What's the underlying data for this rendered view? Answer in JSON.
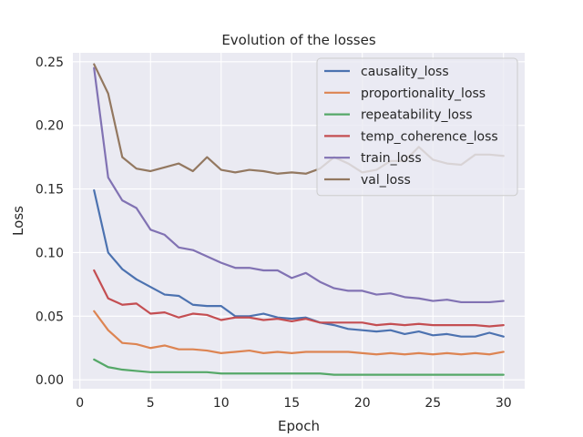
{
  "chart_data": {
    "type": "line",
    "title": "Evolution of the losses",
    "xlabel": "Epoch",
    "ylabel": "Loss",
    "xlim": [
      -0.5,
      31.5
    ],
    "ylim": [
      -0.007,
      0.257
    ],
    "xticks": [
      0,
      5,
      10,
      15,
      20,
      25,
      30
    ],
    "yticks": [
      0.0,
      0.05,
      0.1,
      0.15,
      0.2,
      0.25
    ],
    "xtick_labels": [
      "0",
      "5",
      "10",
      "15",
      "20",
      "25",
      "30"
    ],
    "ytick_labels": [
      "0.00",
      "0.05",
      "0.10",
      "0.15",
      "0.20",
      "0.25"
    ],
    "grid": true,
    "background": "#eaeaf2",
    "legend_position": "upper right",
    "x": [
      1,
      2,
      3,
      4,
      5,
      6,
      7,
      8,
      9,
      10,
      11,
      12,
      13,
      14,
      15,
      16,
      17,
      18,
      19,
      20,
      21,
      22,
      23,
      24,
      25,
      26,
      27,
      28,
      29,
      30
    ],
    "series": [
      {
        "name": "causality_loss",
        "color": "#4c72b0",
        "values": [
          0.149,
          0.1,
          0.087,
          0.079,
          0.073,
          0.067,
          0.066,
          0.059,
          0.058,
          0.058,
          0.05,
          0.05,
          0.052,
          0.049,
          0.048,
          0.049,
          0.045,
          0.043,
          0.04,
          0.039,
          0.038,
          0.039,
          0.036,
          0.038,
          0.035,
          0.036,
          0.034,
          0.034,
          0.037,
          0.034
        ]
      },
      {
        "name": "proportionality_loss",
        "color": "#dd8452",
        "values": [
          0.054,
          0.039,
          0.029,
          0.028,
          0.025,
          0.027,
          0.024,
          0.024,
          0.023,
          0.021,
          0.022,
          0.023,
          0.021,
          0.022,
          0.021,
          0.022,
          0.022,
          0.022,
          0.022,
          0.021,
          0.02,
          0.021,
          0.02,
          0.021,
          0.02,
          0.021,
          0.02,
          0.021,
          0.02,
          0.022
        ]
      },
      {
        "name": "repeatability_loss",
        "color": "#55a868",
        "values": [
          0.016,
          0.01,
          0.008,
          0.007,
          0.006,
          0.006,
          0.006,
          0.006,
          0.006,
          0.005,
          0.005,
          0.005,
          0.005,
          0.005,
          0.005,
          0.005,
          0.005,
          0.004,
          0.004,
          0.004,
          0.004,
          0.004,
          0.004,
          0.004,
          0.004,
          0.004,
          0.004,
          0.004,
          0.004,
          0.004
        ]
      },
      {
        "name": "temp_coherence_loss",
        "color": "#c44e52",
        "values": [
          0.086,
          0.064,
          0.059,
          0.06,
          0.052,
          0.053,
          0.049,
          0.052,
          0.051,
          0.047,
          0.049,
          0.049,
          0.047,
          0.048,
          0.046,
          0.048,
          0.045,
          0.045,
          0.045,
          0.045,
          0.043,
          0.044,
          0.043,
          0.044,
          0.043,
          0.043,
          0.043,
          0.043,
          0.042,
          0.043
        ]
      },
      {
        "name": "train_loss",
        "color": "#8172b3",
        "values": [
          0.245,
          0.159,
          0.141,
          0.135,
          0.118,
          0.114,
          0.104,
          0.102,
          0.097,
          0.092,
          0.088,
          0.088,
          0.086,
          0.086,
          0.08,
          0.084,
          0.077,
          0.072,
          0.07,
          0.07,
          0.067,
          0.068,
          0.065,
          0.064,
          0.062,
          0.063,
          0.061,
          0.061,
          0.061,
          0.062
        ]
      },
      {
        "name": "val_loss",
        "color": "#937860",
        "values": [
          0.248,
          0.225,
          0.175,
          0.166,
          0.164,
          0.167,
          0.17,
          0.164,
          0.175,
          0.165,
          0.163,
          0.165,
          0.164,
          0.162,
          0.163,
          0.162,
          0.166,
          0.175,
          0.17,
          0.163,
          0.165,
          0.172,
          0.172,
          0.183,
          0.173,
          0.17,
          0.169,
          0.177,
          0.177,
          0.176
        ]
      }
    ]
  }
}
